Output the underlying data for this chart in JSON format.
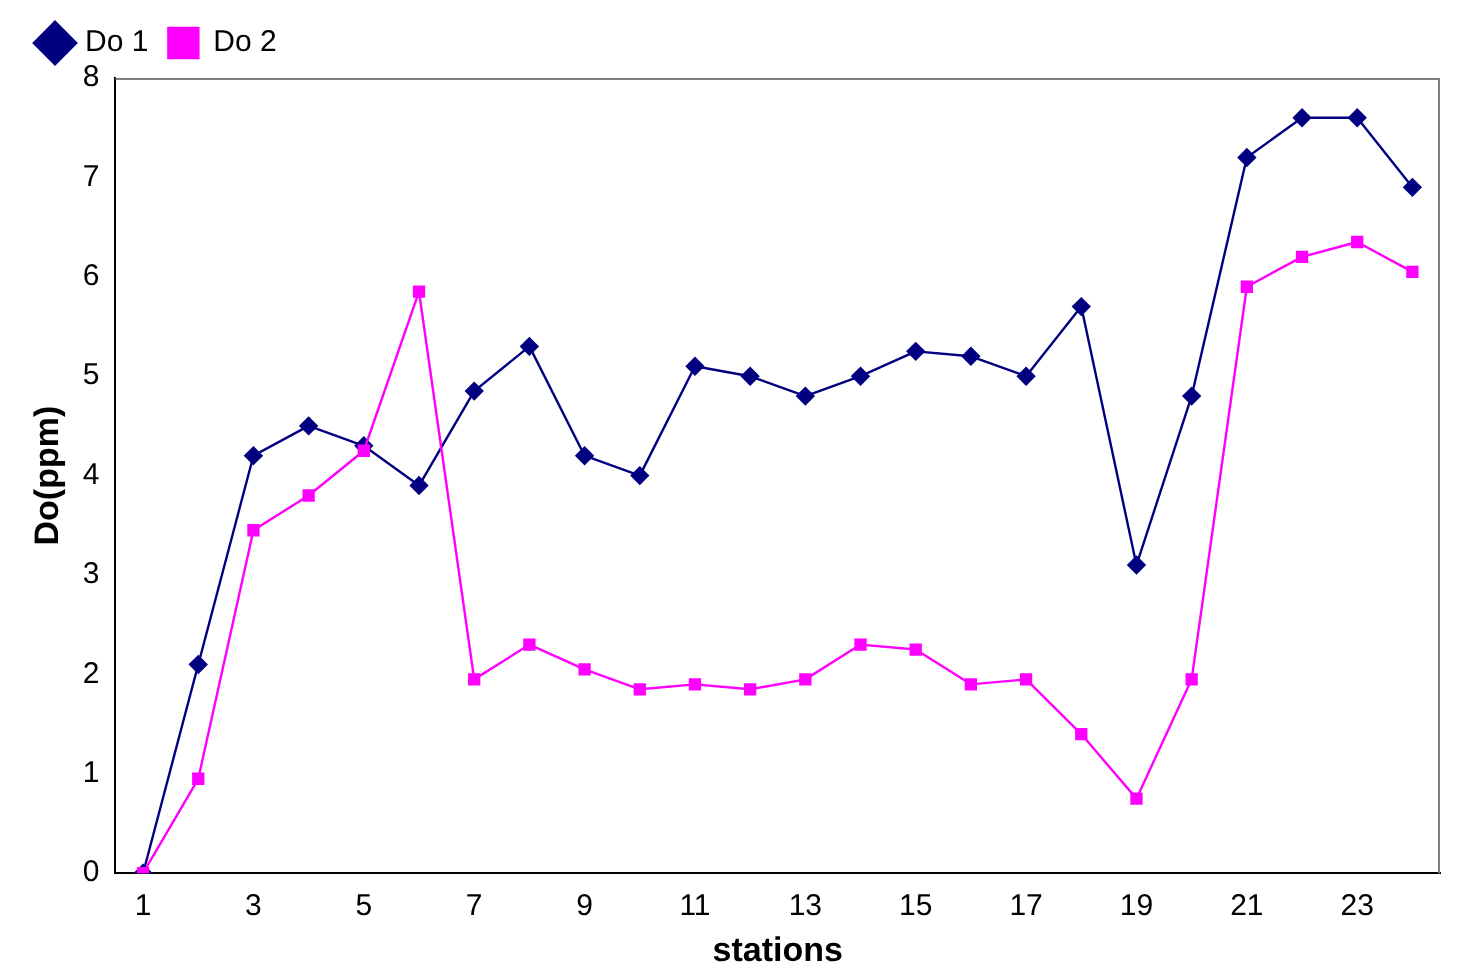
{
  "chart_data": {
    "type": "line",
    "xlabel": "stations",
    "ylabel": "Do(ppm)",
    "x": [
      1,
      2,
      3,
      4,
      5,
      6,
      7,
      8,
      9,
      10,
      11,
      12,
      13,
      14,
      15,
      16,
      17,
      18,
      19,
      20,
      21,
      22,
      23,
      24
    ],
    "xlim": [
      0.5,
      24.5
    ],
    "xticks": [
      1,
      3,
      5,
      7,
      9,
      11,
      13,
      15,
      17,
      19,
      21,
      23
    ],
    "series": [
      {
        "name": "Do 1",
        "color": "#000080",
        "marker": "diamond",
        "values": [
          0,
          2.1,
          4.2,
          4.5,
          4.3,
          3.9,
          4.85,
          5.3,
          4.2,
          4.0,
          5.1,
          5.0,
          4.8,
          5.0,
          5.25,
          5.2,
          5.0,
          5.7,
          3.1,
          4.8,
          7.2,
          7.6,
          7.6,
          6.9
        ]
      },
      {
        "name": "Do 2",
        "color": "#ff00ff",
        "marker": "square",
        "values": [
          0,
          0.95,
          3.45,
          3.8,
          4.25,
          5.85,
          1.95,
          2.3,
          2.05,
          1.85,
          1.9,
          1.85,
          1.95,
          2.3,
          2.25,
          1.9,
          1.95,
          1.4,
          0.75,
          1.95,
          5.9,
          6.2,
          6.35,
          6.05
        ]
      }
    ],
    "ylim": [
      0,
      8
    ],
    "yticks": [
      0,
      1,
      2,
      3,
      4,
      5,
      6,
      7,
      8
    ],
    "grid": false,
    "legend": "top left"
  }
}
